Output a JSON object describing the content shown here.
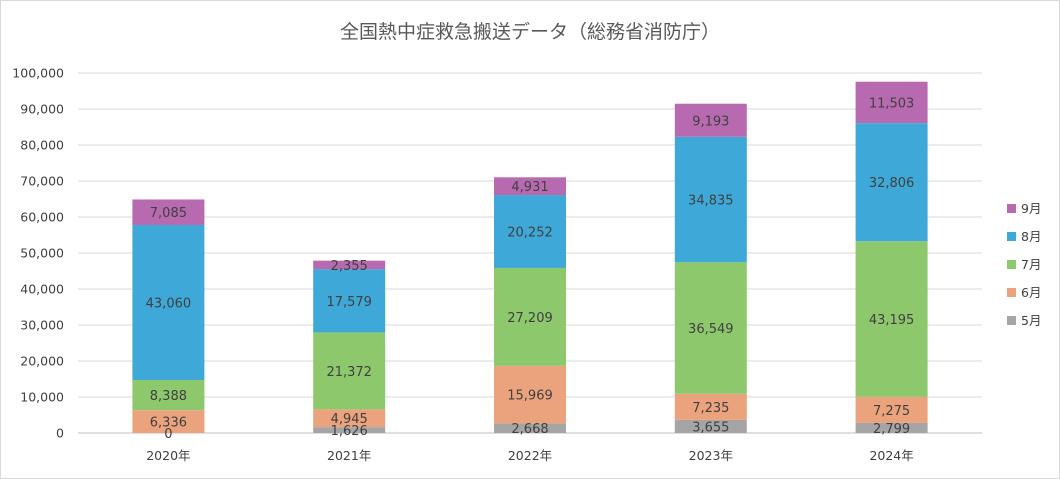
{
  "chart_data": {
    "type": "bar",
    "stacked": true,
    "title": "全国熱中症救急搬送データ（総務省消防庁）",
    "categories": [
      "2020年",
      "2021年",
      "2022年",
      "2023年",
      "2024年"
    ],
    "series": [
      {
        "name": "5月",
        "values": [
          0,
          1626,
          2668,
          3655,
          2799
        ],
        "color": "#a5a5a5"
      },
      {
        "name": "6月",
        "values": [
          6336,
          4945,
          15969,
          7235,
          7275
        ],
        "color": "#eba37d"
      },
      {
        "name": "7月",
        "values": [
          8388,
          21372,
          27209,
          36549,
          43195
        ],
        "color": "#8dc86d"
      },
      {
        "name": "8月",
        "values": [
          43060,
          17579,
          20252,
          34835,
          32806
        ],
        "color": "#3ea8d8"
      },
      {
        "name": "9月",
        "values": [
          7085,
          2355,
          4931,
          9193,
          11503
        ],
        "color": "#b86ab0"
      }
    ],
    "data_labels": [
      [
        "0",
        "1,626",
        "2,668",
        "3,655",
        "2,799"
      ],
      [
        "6,336",
        "4,945",
        "15,969",
        "7,235",
        "7,275"
      ],
      [
        "8,388",
        "21,372",
        "27,209",
        "36,549",
        "43,195"
      ],
      [
        "43,060",
        "17,579",
        "20,252",
        "34,835",
        "32,806"
      ],
      [
        "7,085",
        "2,355",
        "4,931",
        "9,193",
        "11,503"
      ]
    ],
    "ylim": [
      0,
      100000
    ],
    "yticks": [
      0,
      10000,
      20000,
      30000,
      40000,
      50000,
      60000,
      70000,
      80000,
      90000,
      100000
    ],
    "ytick_labels": [
      "0",
      "10,000",
      "20,000",
      "30,000",
      "40,000",
      "50,000",
      "60,000",
      "70,000",
      "80,000",
      "90,000",
      "100,000"
    ],
    "legend_position": "right",
    "legend_order": [
      "9月",
      "8月",
      "7月",
      "6月",
      "5月"
    ],
    "grid": true,
    "colors": {
      "grid": "#d9d9d9",
      "axis": "#bfbfbf",
      "text": "#404040",
      "title": "#595959"
    }
  }
}
